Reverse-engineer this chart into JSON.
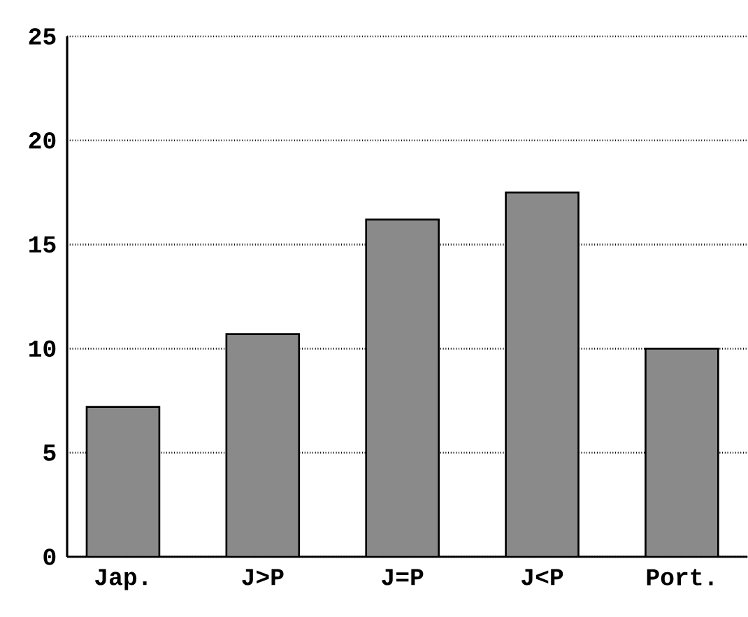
{
  "chart_data": {
    "type": "bar",
    "categories": [
      "Jap.",
      "J>P",
      "J=P",
      "J<P",
      "Port."
    ],
    "values": [
      7.2,
      10.7,
      16.2,
      17.5,
      10.0
    ],
    "color": "#8a8a8a",
    "ylim": [
      0,
      25
    ],
    "yticks": [
      0,
      5,
      10,
      15,
      20,
      25
    ],
    "grid": "y"
  }
}
